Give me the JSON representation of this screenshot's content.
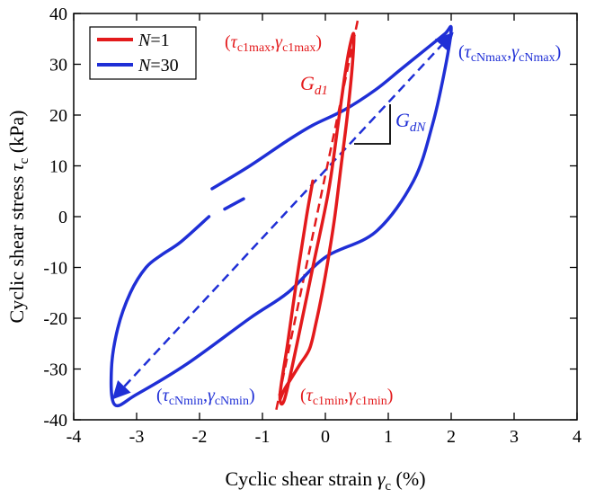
{
  "chart_data": {
    "type": "line",
    "xlabel": {
      "text": "Cyclic shear strain ",
      "symbol": "γ",
      "sub": "c",
      "unit": " (%)"
    },
    "ylabel": {
      "text": "Cyclic shear stress ",
      "symbol": "τ",
      "sub": "c",
      "unit": " (kPa)"
    },
    "xlim": [
      -4,
      4
    ],
    "ylim": [
      -40,
      40
    ],
    "xticks": [
      -4,
      -3,
      -2,
      -1,
      0,
      1,
      2,
      3,
      4
    ],
    "yticks": [
      -40,
      -30,
      -20,
      -10,
      0,
      10,
      20,
      30,
      40
    ],
    "xtick_labels": [
      "-4",
      "-3",
      "-2",
      "-1",
      "0",
      "1",
      "2",
      "3",
      "4"
    ],
    "ytick_labels": [
      "-40",
      "-30",
      "-20",
      "-10",
      "0",
      "10",
      "20",
      "30",
      "40"
    ],
    "grid": false,
    "legend_position": "top-left",
    "legend": [
      {
        "pre": "N",
        "post": "=1",
        "color": "#e31a1c"
      },
      {
        "pre": "N",
        "post": "=30",
        "color": "#1f2fd6"
      }
    ],
    "series": [
      {
        "name": "N=1",
        "color": "#e31a1c",
        "x": [
          -0.2,
          -0.3,
          -0.45,
          -0.6,
          -0.72,
          -0.65,
          -0.45,
          -0.2,
          0.05,
          0.2,
          0.3,
          0.38,
          0.45,
          0.43,
          0.35,
          0.25,
          0.15,
          0.05,
          -0.05,
          -0.15,
          -0.25,
          -0.4,
          -0.55,
          -0.65,
          -0.72
        ],
        "y": [
          7,
          0,
          -12,
          -25,
          -35,
          -36,
          -25,
          -10,
          5,
          18,
          27,
          33,
          36,
          30,
          20,
          10,
          0,
          -8,
          -15,
          -21,
          -26,
          -29,
          -32,
          -34,
          -36
        ]
      },
      {
        "name": "N=30",
        "color": "#1f2fd6",
        "segments": [
          {
            "x": [
              -1.85,
              -2.3,
              -2.6,
              -2.85,
              -3.1,
              -3.3,
              -3.4,
              -3.35,
              -3.0,
              -2.2,
              -1.2,
              -0.6,
              0.0,
              0.8,
              1.4,
              1.7,
              1.9,
              2.0,
              1.9,
              1.6,
              1.2,
              0.8,
              0.3,
              -0.2,
              -0.6,
              -1.2,
              -1.8
            ],
            "y": [
              0,
              -5,
              -7.5,
              -10,
              -15,
              -22,
              -30,
              -37,
              -35,
              -29,
              -20,
              -15,
              -8,
              -3,
              7,
              18,
              29,
              37,
              36,
              33,
              29,
              25,
              21,
              18,
              15,
              10,
              5.5
            ]
          },
          {
            "x": [
              -1.6,
              -1.3
            ],
            "y": [
              1.5,
              3.5
            ]
          }
        ]
      }
    ],
    "reference_lines": [
      {
        "color": "#e31a1c",
        "style": "dashed",
        "x": [
          -0.78,
          0.52
        ],
        "y": [
          -38,
          39
        ]
      },
      {
        "color": "#1f2fd6",
        "style": "dashed",
        "x": [
          -3.35,
          2.0
        ],
        "y": [
          -35.5,
          35.8
        ],
        "arrows": "both"
      }
    ],
    "annotations": [
      {
        "id": "red_max",
        "color": "#e31a1c",
        "prefix": "(",
        "s1": "τ",
        "s1sub": "c1max",
        "sep": ",",
        "s2": "γ",
        "s2sub": "c1max",
        "suffix": ")"
      },
      {
        "id": "blue_max",
        "color": "#1f2fd6",
        "prefix": "(",
        "s1": "τ",
        "s1sub": "cNmax",
        "sep": ",",
        "s2": "γ",
        "s2sub": "cNmax",
        "suffix": ")"
      },
      {
        "id": "red_min",
        "color": "#e31a1c",
        "prefix": "(",
        "s1": "τ",
        "s1sub": "c1min",
        "sep": ",",
        "s2": "γ",
        "s2sub": "c1min",
        "suffix": ")"
      },
      {
        "id": "blue_min",
        "color": "#1f2fd6",
        "prefix": "(",
        "s1": "τ",
        "s1sub": "cNmin",
        "sep": ",",
        "s2": "γ",
        "s2sub": "cNmin",
        "suffix": ")"
      },
      {
        "id": "gd1",
        "color": "#e31a1c",
        "symbol": "G",
        "sub": "d1"
      },
      {
        "id": "gdn",
        "color": "#1f2fd6",
        "symbol": "G",
        "sub": "dN"
      }
    ]
  }
}
